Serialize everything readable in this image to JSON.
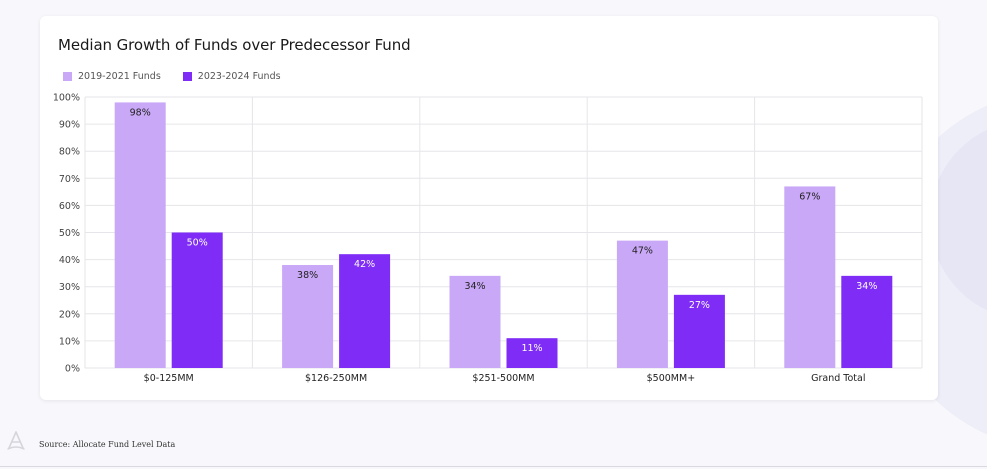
{
  "source_note": "Source: Allocate Fund Level Data",
  "logo_icon": "allocate-logo-icon",
  "colors": {
    "series1": "#c9a8f7",
    "series2": "#7e2cf6",
    "grid": "#e6e6ea",
    "axis_text": "#444444"
  },
  "chart_data": {
    "type": "bar",
    "title": "Median Growth of Funds over Predecessor Fund",
    "xlabel": "",
    "ylabel": "",
    "categories": [
      "$0-125MM",
      "$126-250MM",
      "$251-500MM",
      "$500MM+",
      "Grand Total"
    ],
    "series": [
      {
        "name": "2019-2021 Funds",
        "values": [
          98,
          38,
          34,
          47,
          67
        ],
        "labels": [
          "98%",
          "38%",
          "34%",
          "47%",
          "67%"
        ]
      },
      {
        "name": "2023-2024 Funds",
        "values": [
          50,
          42,
          11,
          27,
          34
        ],
        "labels": [
          "50%",
          "42%",
          "11%",
          "27%",
          "34%"
        ]
      }
    ],
    "ylim": [
      0,
      100
    ],
    "yticks": [
      "0%",
      "10%",
      "20%",
      "30%",
      "40%",
      "50%",
      "60%",
      "70%",
      "80%",
      "90%",
      "100%"
    ],
    "grid": true,
    "legend_position": "top-left"
  }
}
